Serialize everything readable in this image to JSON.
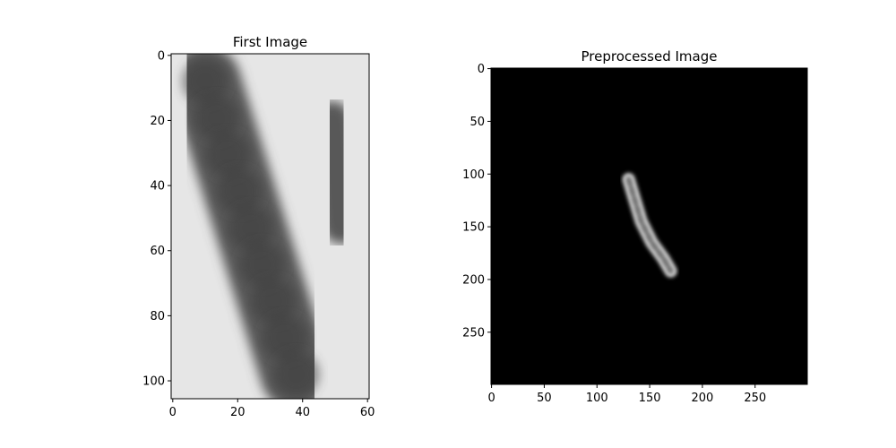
{
  "chart_data": [
    {
      "type": "image",
      "title": "First Image",
      "xlim": [
        -0.5,
        60.5
      ],
      "ylim": [
        105.5,
        -0.5
      ],
      "xticks": [
        0,
        20,
        40,
        60
      ],
      "yticks": [
        0,
        20,
        40,
        60,
        80,
        100
      ],
      "image_content": "grayscale microscopy crop of a dark elongated chromosome on a light background",
      "blobs": [
        {
          "x": [
            10,
            38
          ],
          "y": [
            8,
            98
          ],
          "w": 22,
          "level": 0.35
        },
        {
          "x": [
            2,
            4
          ],
          "y": [
            28,
            28
          ],
          "w": 14,
          "level": 0.4
        },
        {
          "x": [
            49,
            52
          ],
          "y": [
            20,
            52
          ],
          "w": 12,
          "level": 0.35
        },
        {
          "x": [
            28,
            36
          ],
          "y": [
            1,
            1
          ],
          "w": 12,
          "level": 0.45
        },
        {
          "x": [
            2,
            2
          ],
          "y": [
            92,
            92
          ],
          "w": 18,
          "level": 0.45
        },
        {
          "x": [
            20,
            20
          ],
          "y": [
            106,
            106
          ],
          "w": 10,
          "level": 0.5
        }
      ]
    },
    {
      "type": "image",
      "title": "Preprocessed Image",
      "xlim": [
        -0.5,
        299.5
      ],
      "ylim": [
        299.5,
        -0.5
      ],
      "xticks": [
        0,
        50,
        100,
        150,
        200,
        250
      ],
      "yticks": [
        0,
        50,
        100,
        150,
        200,
        250
      ],
      "image_content": "black background with a single light elongated chromosome",
      "object_path": [
        [
          130,
          105
        ],
        [
          136,
          125
        ],
        [
          142,
          145
        ],
        [
          152,
          165
        ],
        [
          163,
          180
        ],
        [
          170,
          192
        ]
      ],
      "object_width": 12
    }
  ]
}
